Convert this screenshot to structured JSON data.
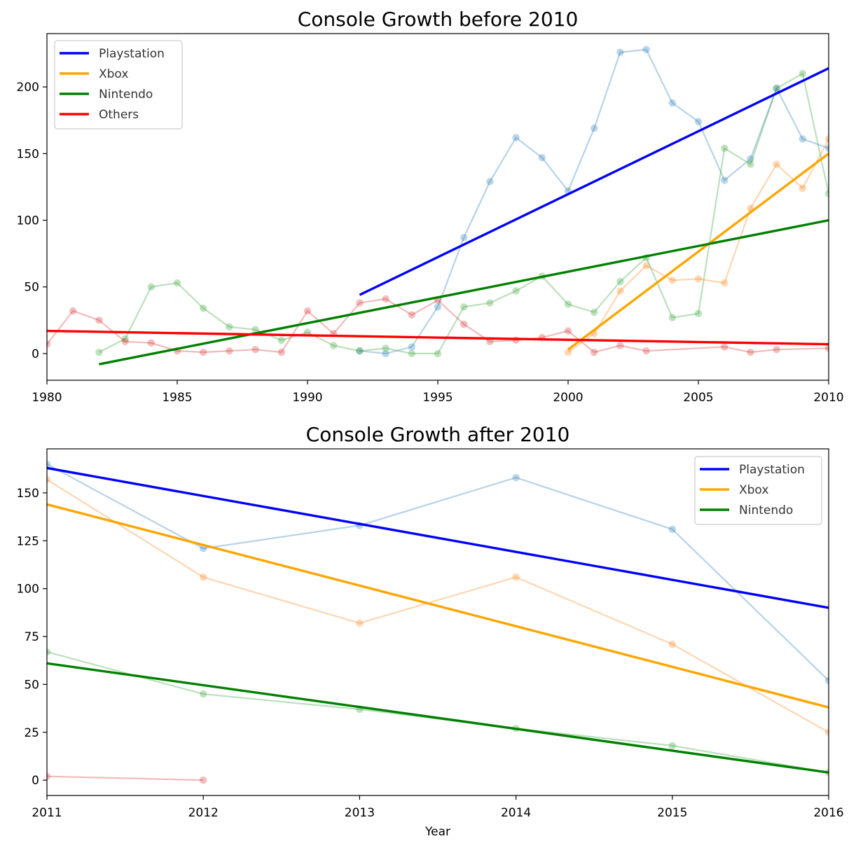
{
  "chart_data": [
    {
      "type": "line",
      "title": "Console Growth before 2010",
      "xlabel": "",
      "ylabel": "",
      "xlim": [
        1980,
        2010
      ],
      "ylim": [
        -20,
        240
      ],
      "xticks": [
        1980,
        1985,
        1990,
        1995,
        2000,
        2005,
        2010
      ],
      "yticks": [
        0,
        50,
        100,
        150,
        200
      ],
      "legend_position": "top-left",
      "series": [
        {
          "name": "Playstation",
          "color": "#1f77b4",
          "points": [
            [
              1992,
              2
            ],
            [
              1993,
              0
            ],
            [
              1994,
              5
            ],
            [
              1995,
              35
            ],
            [
              1996,
              87
            ],
            [
              1997,
              129
            ],
            [
              1998,
              162
            ],
            [
              1999,
              147
            ],
            [
              2000,
              122
            ],
            [
              2001,
              169
            ],
            [
              2002,
              226
            ],
            [
              2003,
              228
            ],
            [
              2004,
              188
            ],
            [
              2005,
              174
            ],
            [
              2006,
              130
            ],
            [
              2007,
              146
            ],
            [
              2008,
              199
            ],
            [
              2009,
              161
            ],
            [
              2010,
              154
            ]
          ],
          "trend": {
            "color": "#0000ff",
            "x": [
              1992,
              2010
            ],
            "y": [
              44,
              214
            ]
          }
        },
        {
          "name": "Xbox",
          "color": "#ff7f0e",
          "points": [
            [
              2000,
              1
            ],
            [
              2001,
              15
            ],
            [
              2002,
              47
            ],
            [
              2003,
              66
            ],
            [
              2004,
              55
            ],
            [
              2005,
              56
            ],
            [
              2006,
              53
            ],
            [
              2007,
              109
            ],
            [
              2008,
              142
            ],
            [
              2009,
              124
            ],
            [
              2010,
              161
            ]
          ],
          "trend": {
            "color": "#ffa500",
            "x": [
              2000,
              2010
            ],
            "y": [
              3,
              150
            ]
          }
        },
        {
          "name": "Nintendo",
          "color": "#2ca02c",
          "points": [
            [
              1982,
              1
            ],
            [
              1983,
              11
            ],
            [
              1984,
              50
            ],
            [
              1985,
              53
            ],
            [
              1986,
              34
            ],
            [
              1987,
              20
            ],
            [
              1988,
              18
            ],
            [
              1989,
              10
            ],
            [
              1990,
              16
            ],
            [
              1991,
              6
            ],
            [
              1992,
              2
            ],
            [
              1993,
              4
            ],
            [
              1994,
              0
            ],
            [
              1995,
              0
            ],
            [
              1996,
              35
            ],
            [
              1997,
              38
            ],
            [
              1998,
              47
            ],
            [
              1999,
              58
            ],
            [
              2000,
              37
            ],
            [
              2001,
              31
            ],
            [
              2002,
              54
            ],
            [
              2003,
              72
            ],
            [
              2004,
              27
            ],
            [
              2005,
              30
            ],
            [
              2006,
              154
            ],
            [
              2007,
              142
            ],
            [
              2008,
              199
            ],
            [
              2009,
              210
            ],
            [
              2010,
              120
            ]
          ],
          "trend": {
            "color": "#008000",
            "x": [
              1982,
              2010
            ],
            "y": [
              -8,
              100
            ]
          }
        },
        {
          "name": "Others",
          "color": "#d62728",
          "points": [
            [
              1980,
              7
            ],
            [
              1981,
              32
            ],
            [
              1982,
              25
            ],
            [
              1983,
              9
            ],
            [
              1984,
              8
            ],
            [
              1985,
              2
            ],
            [
              1986,
              1
            ],
            [
              1987,
              2
            ],
            [
              1988,
              3
            ],
            [
              1989,
              1
            ],
            [
              1990,
              32
            ],
            [
              1991,
              15
            ],
            [
              1992,
              38
            ],
            [
              1993,
              41
            ],
            [
              1994,
              29
            ],
            [
              1995,
              40
            ],
            [
              1996,
              22
            ],
            [
              1997,
              9
            ],
            [
              1998,
              10
            ],
            [
              1999,
              12
            ],
            [
              2000,
              17
            ],
            [
              2001,
              1
            ],
            [
              2002,
              6
            ],
            [
              2003,
              2
            ],
            [
              2006,
              5
            ],
            [
              2007,
              1
            ],
            [
              2008,
              3
            ],
            [
              2010,
              4
            ]
          ],
          "trend": {
            "color": "#ff0000",
            "x": [
              1980,
              2010
            ],
            "y": [
              17,
              7
            ]
          }
        }
      ]
    },
    {
      "type": "line",
      "title": "Console Growth after 2010",
      "xlabel": "Year",
      "ylabel": "",
      "xlim": [
        2011,
        2016
      ],
      "ylim": [
        -8,
        173
      ],
      "xticks": [
        2011,
        2012,
        2013,
        2014,
        2015,
        2016
      ],
      "yticks": [
        0,
        25,
        50,
        75,
        100,
        125,
        150
      ],
      "legend_position": "top-right",
      "series": [
        {
          "name": "Playstation",
          "color": "#1f77b4",
          "points": [
            [
              2011,
              165
            ],
            [
              2012,
              121
            ],
            [
              2013,
              133
            ],
            [
              2014,
              158
            ],
            [
              2015,
              131
            ],
            [
              2016,
              52
            ]
          ],
          "trend": {
            "color": "#0000ff",
            "x": [
              2011,
              2016
            ],
            "y": [
              163,
              90
            ]
          }
        },
        {
          "name": "Xbox",
          "color": "#ff7f0e",
          "points": [
            [
              2011,
              157
            ],
            [
              2012,
              106
            ],
            [
              2013,
              82
            ],
            [
              2014,
              106
            ],
            [
              2015,
              71
            ],
            [
              2016,
              25
            ]
          ],
          "trend": {
            "color": "#ffa500",
            "x": [
              2011,
              2016
            ],
            "y": [
              144,
              38
            ]
          }
        },
        {
          "name": "Nintendo",
          "color": "#2ca02c",
          "points": [
            [
              2011,
              67
            ],
            [
              2012,
              45
            ],
            [
              2013,
              37
            ],
            [
              2014,
              27
            ],
            [
              2015,
              18
            ],
            [
              2016,
              4
            ]
          ],
          "trend": {
            "color": "#008000",
            "x": [
              2011,
              2016
            ],
            "y": [
              61,
              4
            ]
          }
        },
        {
          "color": "#d62728",
          "points": [
            [
              2011,
              2
            ],
            [
              2012,
              0
            ]
          ],
          "in_legend": false
        }
      ]
    }
  ]
}
